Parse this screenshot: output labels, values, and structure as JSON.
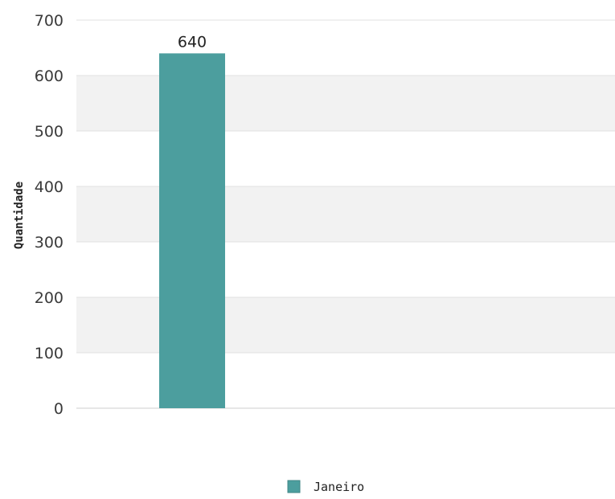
{
  "chart_data": {
    "type": "bar",
    "categories": [
      ""
    ],
    "series": [
      {
        "name": "Janeiro",
        "values": [
          640
        ],
        "color": "#4c9e9e"
      }
    ],
    "ylabel": "Quantidade",
    "xlabel": "",
    "ylim": [
      0,
      700
    ],
    "yticks": [
      0,
      100,
      200,
      300,
      400,
      500,
      600,
      700
    ],
    "data_labels": true,
    "grid": true,
    "band_colors": [
      "#ffffff",
      "#f2f2f2"
    ],
    "legend_position": "bottom"
  }
}
